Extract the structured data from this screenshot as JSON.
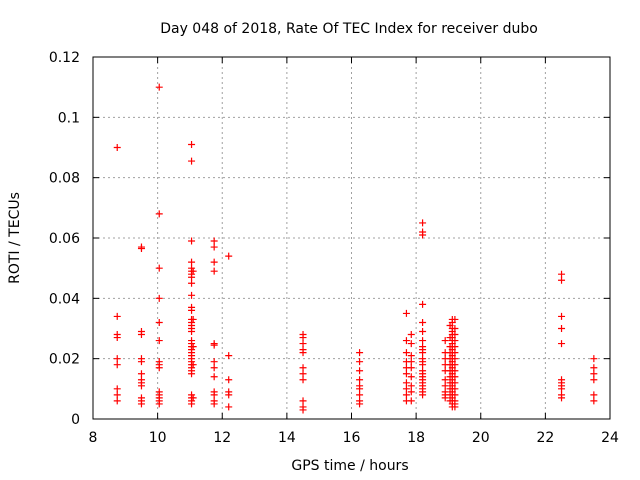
{
  "chart_data": {
    "type": "scatter",
    "title": "Day 048 of 2018, Rate Of TEC Index for receiver dubo",
    "xlabel": "GPS time / hours",
    "ylabel": "ROTI / TECUs",
    "xlim": [
      8,
      24
    ],
    "ylim": [
      0,
      0.12
    ],
    "xticks": [
      8,
      10,
      12,
      14,
      16,
      18,
      20,
      22,
      24
    ],
    "yticks": [
      0,
      0.02,
      0.04,
      0.06,
      0.08,
      0.1,
      0.12
    ],
    "xtick_labels": [
      "8",
      "10",
      "12",
      "14",
      "16",
      "18",
      "20",
      "22",
      "24"
    ],
    "ytick_labels": [
      "0",
      "0.02",
      "0.04",
      "0.06",
      "0.08",
      "0.1",
      "0.12"
    ],
    "grid": true,
    "marker": "+",
    "marker_color": "#ff0000",
    "series": [
      {
        "points": [
          [
            8.75,
            0.09
          ],
          [
            8.75,
            0.034
          ],
          [
            8.75,
            0.028
          ],
          [
            8.75,
            0.027
          ],
          [
            8.75,
            0.02
          ],
          [
            8.75,
            0.018
          ],
          [
            8.75,
            0.01
          ],
          [
            8.75,
            0.008
          ],
          [
            8.75,
            0.006
          ],
          [
            9.5,
            0.057
          ],
          [
            9.5,
            0.0565
          ],
          [
            9.5,
            0.029
          ],
          [
            9.5,
            0.028
          ],
          [
            9.5,
            0.02
          ],
          [
            9.5,
            0.019
          ],
          [
            9.5,
            0.015
          ],
          [
            9.5,
            0.013
          ],
          [
            9.5,
            0.012
          ],
          [
            9.5,
            0.011
          ],
          [
            9.5,
            0.007
          ],
          [
            9.5,
            0.006
          ],
          [
            9.5,
            0.005
          ],
          [
            10.05,
            0.11
          ],
          [
            10.05,
            0.068
          ],
          [
            10.05,
            0.05
          ],
          [
            10.05,
            0.04
          ],
          [
            10.05,
            0.032
          ],
          [
            10.05,
            0.026
          ],
          [
            10.05,
            0.019
          ],
          [
            10.05,
            0.018
          ],
          [
            10.05,
            0.017
          ],
          [
            10.05,
            0.009
          ],
          [
            10.05,
            0.008
          ],
          [
            10.05,
            0.007
          ],
          [
            10.05,
            0.006
          ],
          [
            10.05,
            0.005
          ],
          [
            11.05,
            0.091
          ],
          [
            11.05,
            0.0855
          ],
          [
            11.05,
            0.059
          ],
          [
            11.05,
            0.052
          ],
          [
            11.05,
            0.05
          ],
          [
            11.05,
            0.049
          ],
          [
            11.05,
            0.048
          ],
          [
            11.05,
            0.047
          ],
          [
            11.05,
            0.045
          ],
          [
            11.05,
            0.041
          ],
          [
            11.05,
            0.037
          ],
          [
            11.05,
            0.036
          ],
          [
            11.05,
            0.033
          ],
          [
            11.05,
            0.032
          ],
          [
            11.05,
            0.031
          ],
          [
            11.05,
            0.03
          ],
          [
            11.05,
            0.029
          ],
          [
            11.05,
            0.026
          ],
          [
            11.05,
            0.025
          ],
          [
            11.05,
            0.024
          ],
          [
            11.05,
            0.023
          ],
          [
            11.05,
            0.022
          ],
          [
            11.05,
            0.021
          ],
          [
            11.05,
            0.02
          ],
          [
            11.05,
            0.019
          ],
          [
            11.05,
            0.018
          ],
          [
            11.05,
            0.017
          ],
          [
            11.05,
            0.016
          ],
          [
            11.05,
            0.015
          ],
          [
            11.05,
            0.008
          ],
          [
            11.05,
            0.007
          ],
          [
            11.05,
            0.006
          ],
          [
            11.05,
            0.005
          ],
          [
            11.1,
            0.049
          ],
          [
            11.1,
            0.033
          ],
          [
            11.1,
            0.024
          ],
          [
            11.1,
            0.018
          ],
          [
            11.1,
            0.007
          ],
          [
            11.75,
            0.059
          ],
          [
            11.75,
            0.057
          ],
          [
            11.75,
            0.052
          ],
          [
            11.75,
            0.049
          ],
          [
            11.75,
            0.025
          ],
          [
            11.75,
            0.0245
          ],
          [
            11.75,
            0.019
          ],
          [
            11.75,
            0.017
          ],
          [
            11.75,
            0.014
          ],
          [
            11.75,
            0.009
          ],
          [
            11.75,
            0.008
          ],
          [
            11.75,
            0.006
          ],
          [
            11.75,
            0.005
          ],
          [
            12.2,
            0.054
          ],
          [
            12.2,
            0.021
          ],
          [
            12.2,
            0.013
          ],
          [
            12.2,
            0.009
          ],
          [
            12.2,
            0.008
          ],
          [
            12.2,
            0.004
          ],
          [
            14.5,
            0.028
          ],
          [
            14.5,
            0.027
          ],
          [
            14.5,
            0.025
          ],
          [
            14.5,
            0.023
          ],
          [
            14.5,
            0.022
          ],
          [
            14.5,
            0.017
          ],
          [
            14.5,
            0.015
          ],
          [
            14.5,
            0.013
          ],
          [
            14.5,
            0.006
          ],
          [
            14.5,
            0.004
          ],
          [
            14.5,
            0.003
          ],
          [
            16.25,
            0.022
          ],
          [
            16.25,
            0.019
          ],
          [
            16.25,
            0.016
          ],
          [
            16.25,
            0.013
          ],
          [
            16.25,
            0.011
          ],
          [
            16.25,
            0.01
          ],
          [
            16.25,
            0.008
          ],
          [
            16.25,
            0.006
          ],
          [
            16.25,
            0.005
          ],
          [
            17.7,
            0.035
          ],
          [
            17.7,
            0.026
          ],
          [
            17.7,
            0.022
          ],
          [
            17.7,
            0.019
          ],
          [
            17.7,
            0.017
          ],
          [
            17.7,
            0.015
          ],
          [
            17.7,
            0.012
          ],
          [
            17.7,
            0.01
          ],
          [
            17.7,
            0.008
          ],
          [
            17.7,
            0.006
          ],
          [
            17.85,
            0.028
          ],
          [
            17.85,
            0.025
          ],
          [
            17.85,
            0.021
          ],
          [
            17.85,
            0.019
          ],
          [
            17.85,
            0.017
          ],
          [
            17.85,
            0.014
          ],
          [
            17.85,
            0.011
          ],
          [
            17.85,
            0.009
          ],
          [
            17.85,
            0.006
          ],
          [
            18.2,
            0.065
          ],
          [
            18.2,
            0.062
          ],
          [
            18.2,
            0.061
          ],
          [
            18.2,
            0.038
          ],
          [
            18.2,
            0.032
          ],
          [
            18.2,
            0.029
          ],
          [
            18.2,
            0.026
          ],
          [
            18.2,
            0.024
          ],
          [
            18.2,
            0.023
          ],
          [
            18.2,
            0.022
          ],
          [
            18.2,
            0.02
          ],
          [
            18.2,
            0.019
          ],
          [
            18.2,
            0.018
          ],
          [
            18.2,
            0.016
          ],
          [
            18.2,
            0.015
          ],
          [
            18.2,
            0.014
          ],
          [
            18.2,
            0.013
          ],
          [
            18.2,
            0.012
          ],
          [
            18.2,
            0.011
          ],
          [
            18.2,
            0.01
          ],
          [
            18.2,
            0.009
          ],
          [
            18.2,
            0.008
          ],
          [
            18.9,
            0.026
          ],
          [
            18.9,
            0.022
          ],
          [
            18.9,
            0.02
          ],
          [
            18.9,
            0.018
          ],
          [
            18.9,
            0.016
          ],
          [
            18.9,
            0.013
          ],
          [
            18.9,
            0.011
          ],
          [
            18.9,
            0.009
          ],
          [
            18.9,
            0.008
          ],
          [
            18.9,
            0.007
          ],
          [
            19.05,
            0.031
          ],
          [
            19.05,
            0.027
          ],
          [
            19.05,
            0.024
          ],
          [
            19.05,
            0.022
          ],
          [
            19.05,
            0.02
          ],
          [
            19.05,
            0.018
          ],
          [
            19.05,
            0.016
          ],
          [
            19.05,
            0.014
          ],
          [
            19.05,
            0.012
          ],
          [
            19.05,
            0.01
          ],
          [
            19.05,
            0.008
          ],
          [
            19.05,
            0.006
          ],
          [
            19.12,
            0.033
          ],
          [
            19.12,
            0.032
          ],
          [
            19.12,
            0.03
          ],
          [
            19.12,
            0.029
          ],
          [
            19.12,
            0.028
          ],
          [
            19.12,
            0.027
          ],
          [
            19.12,
            0.026
          ],
          [
            19.12,
            0.025
          ],
          [
            19.12,
            0.024
          ],
          [
            19.12,
            0.023
          ],
          [
            19.12,
            0.022
          ],
          [
            19.12,
            0.021
          ],
          [
            19.12,
            0.02
          ],
          [
            19.12,
            0.019
          ],
          [
            19.12,
            0.018
          ],
          [
            19.12,
            0.017
          ],
          [
            19.12,
            0.016
          ],
          [
            19.12,
            0.015
          ],
          [
            19.12,
            0.014
          ],
          [
            19.12,
            0.013
          ],
          [
            19.12,
            0.012
          ],
          [
            19.12,
            0.011
          ],
          [
            19.12,
            0.01
          ],
          [
            19.12,
            0.009
          ],
          [
            19.12,
            0.008
          ],
          [
            19.12,
            0.007
          ],
          [
            19.12,
            0.006
          ],
          [
            19.12,
            0.005
          ],
          [
            19.12,
            0.004
          ],
          [
            19.2,
            0.033
          ],
          [
            19.2,
            0.03
          ],
          [
            19.2,
            0.028
          ],
          [
            19.2,
            0.026
          ],
          [
            19.2,
            0.024
          ],
          [
            19.2,
            0.022
          ],
          [
            19.2,
            0.02
          ],
          [
            19.2,
            0.018
          ],
          [
            19.2,
            0.016
          ],
          [
            19.2,
            0.014
          ],
          [
            19.2,
            0.012
          ],
          [
            19.2,
            0.01
          ],
          [
            19.2,
            0.008
          ],
          [
            19.2,
            0.006
          ],
          [
            19.2,
            0.005
          ],
          [
            19.2,
            0.004
          ],
          [
            22.5,
            0.048
          ],
          [
            22.5,
            0.046
          ],
          [
            22.5,
            0.034
          ],
          [
            22.5,
            0.03
          ],
          [
            22.5,
            0.025
          ],
          [
            22.5,
            0.013
          ],
          [
            22.5,
            0.012
          ],
          [
            22.5,
            0.011
          ],
          [
            22.5,
            0.01
          ],
          [
            22.5,
            0.008
          ],
          [
            22.5,
            0.007
          ],
          [
            23.5,
            0.02
          ],
          [
            23.5,
            0.017
          ],
          [
            23.5,
            0.015
          ],
          [
            23.5,
            0.013
          ],
          [
            23.5,
            0.008
          ],
          [
            23.5,
            0.006
          ]
        ]
      }
    ]
  }
}
